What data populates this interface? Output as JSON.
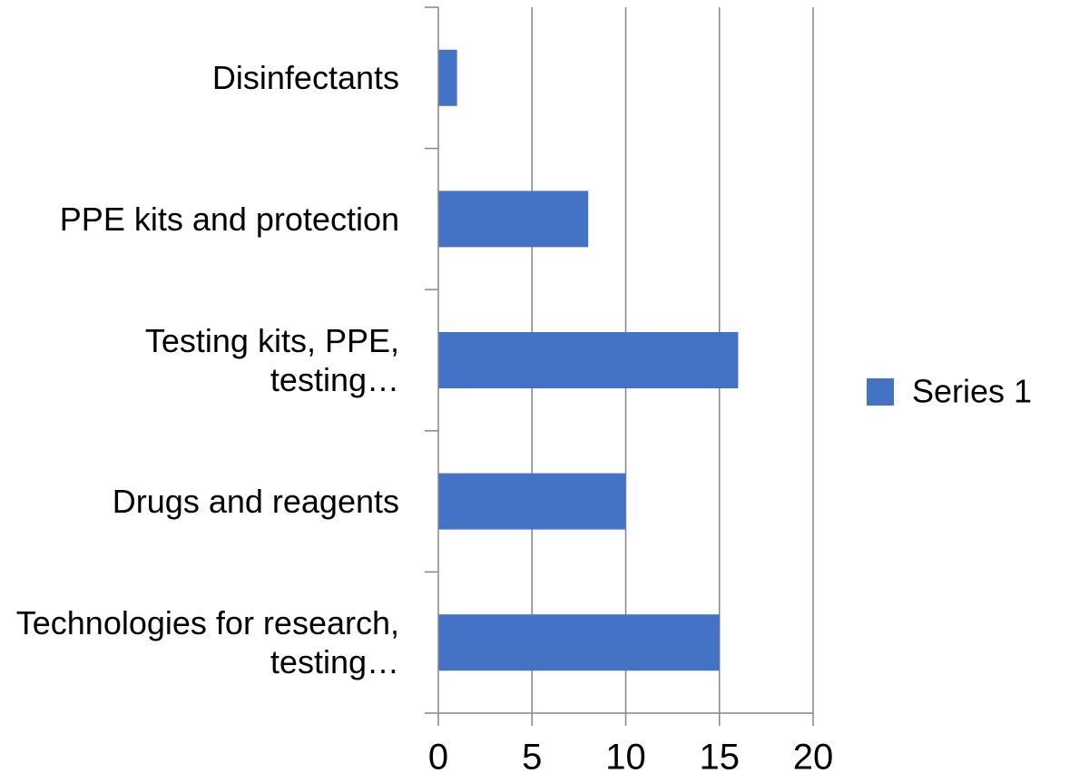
{
  "chart_data": {
    "type": "bar",
    "orientation": "horizontal",
    "categories": [
      "Disinfectants",
      "PPE kits and protection",
      "Testing kits, PPE, testing…",
      "Drugs and reagents",
      "Technologies for research, testing…"
    ],
    "series": [
      {
        "name": "Series 1",
        "color": "#4472c4",
        "values": [
          1,
          8,
          16,
          10,
          15
        ]
      }
    ],
    "xlim": [
      0,
      20
    ],
    "xticks": [
      0,
      5,
      10,
      15,
      20
    ],
    "grid": true,
    "legend": "right"
  }
}
